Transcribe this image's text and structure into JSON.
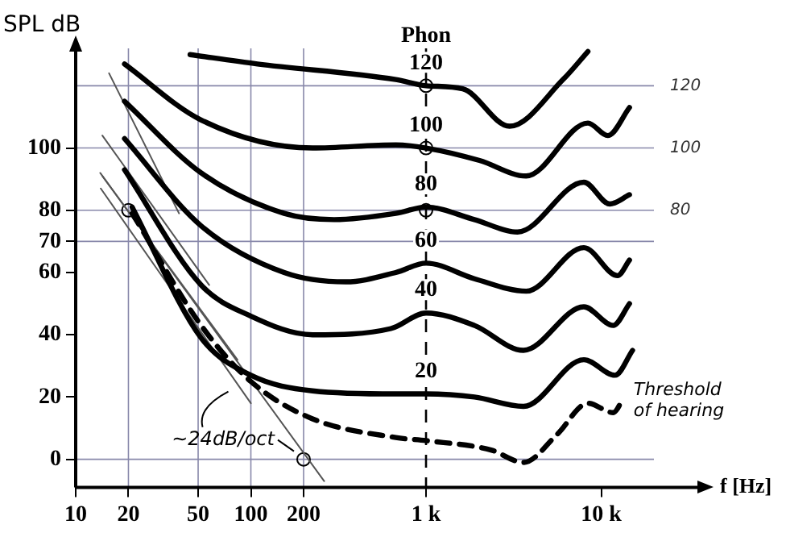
{
  "chart_data": {
    "type": "line",
    "xlabel": "f [Hz]",
    "ylabel": "SPL dB",
    "legend_title": "Phon",
    "log": "x",
    "grid": false,
    "legend": false,
    "line_style": "solid",
    "marker": "none",
    "xlim": [
      10,
      20000
    ],
    "xticks": [
      10,
      20,
      50,
      100,
      200,
      {
        "value": 1000,
        "label": "1 k"
      },
      {
        "value": 10000,
        "label": "10 k"
      }
    ],
    "ylim": [
      -9,
      132
    ],
    "yticks": [
      0,
      20,
      40,
      60,
      70,
      80,
      100
    ],
    "y2lim": [
      -9,
      132
    ],
    "y2ticks": [
      80,
      100,
      120
    ],
    "series": [
      {
        "name": "120",
        "color": "#000000",
        "x": [
          45,
          109,
          672,
          1000,
          1620,
          3000,
          6060,
          8400
        ],
        "values": [
          130,
          127,
          122,
          120,
          119,
          107,
          122,
          131
        ]
      },
      {
        "name": "100",
        "color": "#000000",
        "x": [
          19,
          52,
          225,
          672,
          1000,
          2020,
          3730,
          8400,
          10900,
          14500
        ],
        "values": [
          127,
          109,
          100,
          101,
          100,
          96,
          91,
          108,
          104,
          113
        ]
      },
      {
        "name": "80",
        "color": "#000000",
        "x": [
          19,
          52,
          155,
          299,
          672,
          1000,
          1890,
          3330,
          7960,
          11200,
          14500
        ],
        "values": [
          115,
          92,
          79,
          77,
          79,
          81,
          77,
          73,
          89,
          82,
          85
        ]
      },
      {
        "name": "60",
        "color": "#000000",
        "x": [
          19,
          52,
          155,
          348,
          672,
          1000,
          1890,
          3730,
          7960,
          12400,
          14500
        ],
        "values": [
          103,
          75,
          60,
          57,
          60,
          63,
          58,
          54,
          68,
          59,
          64
        ]
      },
      {
        "name": "40",
        "color": "#000000",
        "x": [
          19,
          52,
          100,
          225,
          630,
          1000,
          1890,
          3600,
          7960,
          11700,
          14500
        ],
        "values": [
          93,
          56,
          46,
          40,
          42,
          47,
          43,
          35,
          49,
          43,
          50
        ]
      },
      {
        "name": "20",
        "color": "#000000",
        "x": [
          21,
          52,
          100,
          225,
          672,
          1000,
          1890,
          3600,
          7960,
          12000,
          15100
        ],
        "values": [
          81,
          39,
          27,
          22,
          21,
          21,
          20,
          17,
          32,
          27,
          35
        ]
      },
      {
        "name": "Threshold of hearing",
        "color": "#000000",
        "line_style": "dashed",
        "x": [
          21,
          52,
          100,
          225,
          672,
          1000,
          2350,
          3600,
          5600,
          8400,
          11700,
          13500
        ],
        "values": [
          79,
          43,
          25,
          13,
          7,
          6,
          3,
          -1,
          8,
          18,
          15,
          20
        ]
      },
      {
        "color": "#555555",
        "x": [
          15.5,
          38.9
        ],
        "values": [
          124,
          79
        ]
      },
      {
        "color": "#555555",
        "x": [
          14.2,
          57.8
        ],
        "values": [
          104,
          56
        ]
      },
      {
        "color": "#555555",
        "x": [
          14.2,
          83.8
        ],
        "values": [
          91,
          32
        ]
      },
      {
        "color": "#555555",
        "x": [
          13.9,
          100
        ],
        "values": [
          87,
          18
        ]
      },
      {
        "color": "#555555",
        "x": [
          13.8,
          262
        ],
        "values": [
          92,
          -7
        ]
      },
      {
        "type": "scatter",
        "color": "#000000",
        "marker": "circle",
        "x": [
          20,
          200,
          1000,
          1000,
          1000
        ],
        "values": [
          80,
          0,
          120,
          100,
          80
        ]
      }
    ],
    "ref_lines": [
      {
        "axis": "y",
        "value": 0,
        "color": "#8888aa"
      },
      {
        "axis": "y",
        "value": 70,
        "color": "#8888aa"
      },
      {
        "axis": "y",
        "value": 80,
        "color": "#8888aa"
      },
      {
        "axis": "y",
        "value": 100,
        "color": "#8888aa"
      },
      {
        "axis": "y",
        "value": 120,
        "color": "#8888aa"
      },
      {
        "axis": "x",
        "value": 20,
        "color": "#8888aa"
      },
      {
        "axis": "x",
        "value": 50,
        "color": "#8888aa"
      },
      {
        "axis": "x",
        "value": 100,
        "color": "#8888aa"
      },
      {
        "axis": "x",
        "value": 200,
        "color": "#8888aa"
      },
      {
        "axis": "x",
        "value": 1000,
        "color": "#000000",
        "line_style": "dashed"
      }
    ],
    "annotations": [
      {
        "text": "~24dB/oct",
        "x": 200,
        "y": 0
      }
    ]
  }
}
